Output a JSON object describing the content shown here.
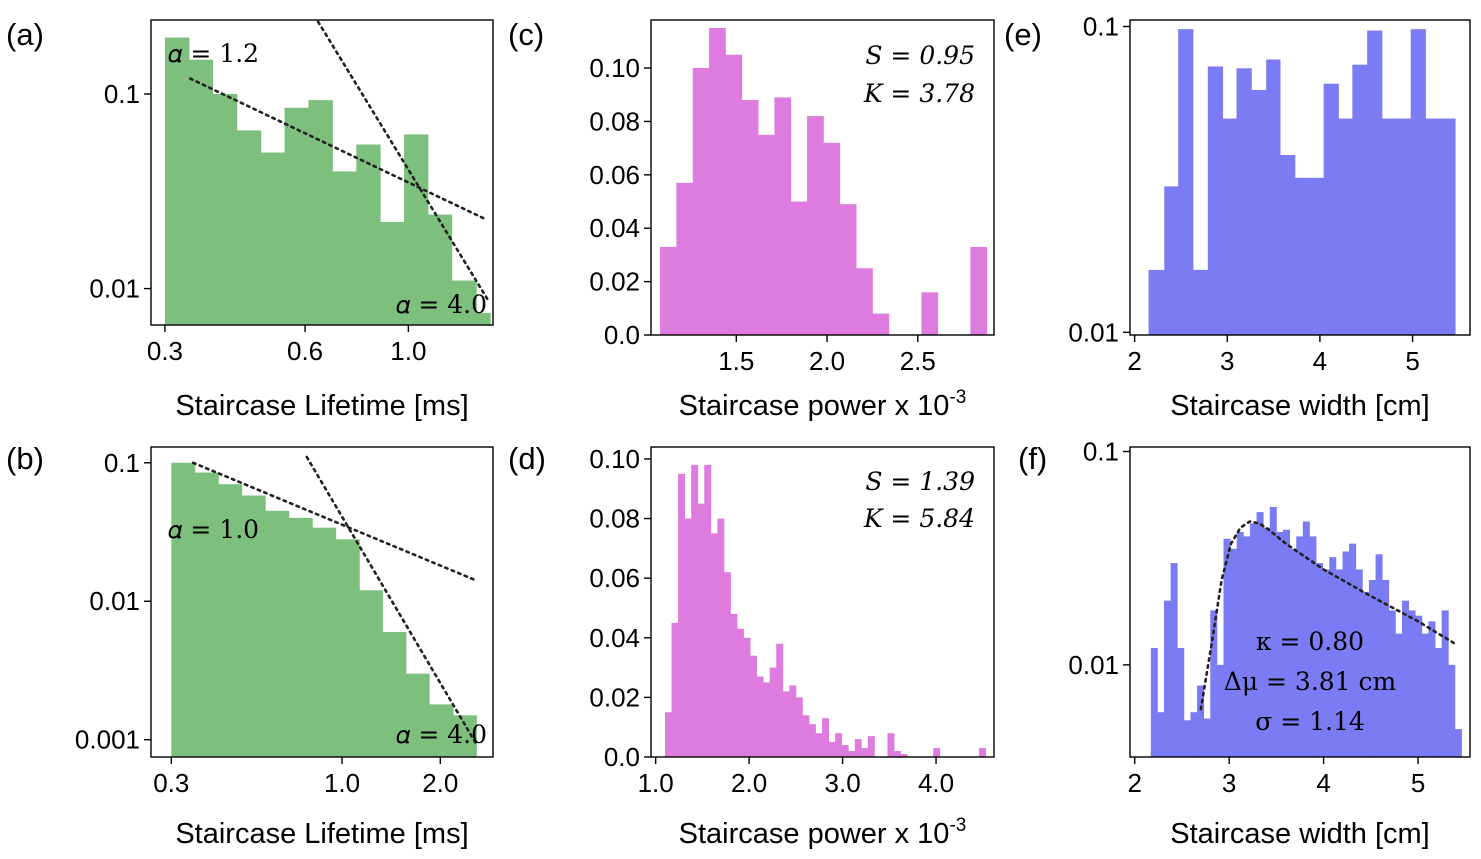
{
  "figure": {
    "panels": [
      "(a)",
      "(b)",
      "(c)",
      "(d)",
      "(e)",
      "(f)"
    ]
  },
  "chart_data": [
    {
      "id": "a",
      "panel_label": "(a)",
      "type": "bar",
      "yscale": "log",
      "xscale": "log",
      "title": "",
      "xlabel": "Staircase Lifetime [ms]",
      "ylabel": "",
      "color": "#7dbf7d",
      "xlim": [
        0.28,
        1.52
      ],
      "ylim": [
        0.0065,
        0.24
      ],
      "xticks": [
        0.3,
        0.6,
        1.0
      ],
      "xticklabels": [
        "0.3",
        "0.6",
        "1.0"
      ],
      "yticks": [
        0.01,
        0.1
      ],
      "yticklabels": [
        "0.01",
        "0.1"
      ],
      "bin_edges": [
        0.3,
        0.338,
        0.38,
        0.428,
        0.482,
        0.542,
        0.61,
        0.687,
        0.773,
        0.87,
        0.979,
        1.102,
        1.24,
        1.4,
        1.5
      ],
      "values": [
        0.195,
        0.15,
        0.1,
        0.065,
        0.05,
        0.085,
        0.093,
        0.04,
        0.055,
        0.022,
        0.062,
        0.024,
        0.011,
        0.0075
      ],
      "fits": [
        {
          "x": [
            0.34,
            1.45
          ],
          "y": [
            0.12,
            0.023
          ]
        },
        {
          "x": [
            0.64,
            1.48
          ],
          "y": [
            0.235,
            0.0088
          ]
        }
      ],
      "annotations": [
        {
          "text": "𝛼 = 1.2",
          "loc": "top-left"
        },
        {
          "text": "𝛼 = 4.0",
          "loc": "bottom-right"
        }
      ]
    },
    {
      "id": "b",
      "panel_label": "(b)",
      "type": "bar",
      "yscale": "log",
      "xscale": "log",
      "title": "",
      "xlabel": "Staircase Lifetime [ms]",
      "ylabel": "",
      "color": "#7dbf7d",
      "xlim": [
        0.26,
        2.9
      ],
      "ylim": [
        0.00075,
        0.13
      ],
      "xticks": [
        0.3,
        1.0,
        2.0
      ],
      "xticklabels": [
        "0.3",
        "1.0",
        "2.0"
      ],
      "yticks": [
        0.001,
        0.01,
        0.1
      ],
      "yticklabels": [
        "0.001",
        "0.01",
        "0.1"
      ],
      "bin_edges": [
        0.3,
        0.354,
        0.418,
        0.493,
        0.582,
        0.687,
        0.811,
        0.957,
        1.13,
        1.33,
        1.57,
        1.85,
        2.19,
        2.58
      ],
      "values": [
        0.1,
        0.085,
        0.07,
        0.058,
        0.045,
        0.04,
        0.034,
        0.028,
        0.012,
        0.006,
        0.003,
        0.0018,
        0.0015
      ],
      "fits": [
        {
          "x": [
            0.35,
            2.6
          ],
          "y": [
            0.1,
            0.014
          ]
        },
        {
          "x": [
            0.78,
            2.6
          ],
          "y": [
            0.11,
            0.0009
          ]
        }
      ],
      "annotations": [
        {
          "text": "𝛼 = 1.0",
          "loc": "middle-left"
        },
        {
          "text": "𝛼 = 4.0",
          "loc": "bottom-right"
        }
      ]
    },
    {
      "id": "c",
      "panel_label": "(c)",
      "type": "bar",
      "yscale": "linear",
      "title": "",
      "xlabel": "Staircase power x 10",
      "xlabel_sup": "-3",
      "ylabel": "",
      "color": "#dd7bde",
      "xlim": [
        1.03,
        2.92
      ],
      "ylim": [
        0.0,
        0.118
      ],
      "xticks": [
        1.5,
        2.0,
        2.5
      ],
      "xticklabels": [
        "1.5",
        "2.0",
        "2.5"
      ],
      "yticks": [
        0.0,
        0.02,
        0.04,
        0.06,
        0.08,
        0.1
      ],
      "yticklabels": [
        "0.0",
        "0.02",
        "0.04",
        "0.06",
        "0.08",
        "0.10"
      ],
      "bin_edges": [
        1.08,
        1.17,
        1.26,
        1.35,
        1.44,
        1.53,
        1.62,
        1.71,
        1.8,
        1.89,
        1.98,
        2.07,
        2.16,
        2.25,
        2.34,
        2.43,
        2.52,
        2.61,
        2.7,
        2.79,
        2.88
      ],
      "values": [
        0.033,
        0.057,
        0.1,
        0.115,
        0.105,
        0.088,
        0.075,
        0.089,
        0.05,
        0.082,
        0.072,
        0.049,
        0.025,
        0.008,
        0.0,
        0.0,
        0.016,
        0.0,
        0.0,
        0.033
      ],
      "annotations": [
        {
          "text": "S = 0.95",
          "loc": "top-right"
        },
        {
          "text": "K = 3.78",
          "loc": "top-right"
        }
      ]
    },
    {
      "id": "d",
      "panel_label": "(d)",
      "type": "bar",
      "yscale": "linear",
      "title": "",
      "xlabel": "Staircase power x 10",
      "xlabel_sup": "-3",
      "ylabel": "",
      "color": "#dd7bde",
      "xlim": [
        0.95,
        4.62
      ],
      "ylim": [
        0.0,
        0.104
      ],
      "xticks": [
        1.0,
        2.0,
        3.0,
        4.0
      ],
      "xticklabels": [
        "1.0",
        "2.0",
        "3.0",
        "4.0"
      ],
      "yticks": [
        0.0,
        0.02,
        0.04,
        0.06,
        0.08,
        0.1
      ],
      "yticklabels": [
        "0.0",
        "0.02",
        "0.04",
        "0.06",
        "0.08",
        "0.10"
      ],
      "bin_edges": [
        1.1,
        1.17,
        1.24,
        1.31,
        1.38,
        1.45,
        1.52,
        1.59,
        1.66,
        1.73,
        1.8,
        1.87,
        1.94,
        2.01,
        2.08,
        2.15,
        2.22,
        2.29,
        2.36,
        2.43,
        2.5,
        2.57,
        2.64,
        2.71,
        2.78,
        2.85,
        2.92,
        2.99,
        3.06,
        3.13,
        3.2,
        3.27,
        3.34,
        3.41,
        3.48,
        3.55,
        3.62,
        3.69,
        3.76,
        3.83,
        3.9,
        3.97,
        4.04,
        4.11,
        4.18,
        4.25,
        4.32,
        4.39,
        4.46,
        4.53
      ],
      "values": [
        0.015,
        0.045,
        0.095,
        0.08,
        0.098,
        0.085,
        0.098,
        0.075,
        0.08,
        0.062,
        0.048,
        0.043,
        0.04,
        0.034,
        0.027,
        0.025,
        0.03,
        0.038,
        0.022,
        0.024,
        0.02,
        0.014,
        0.011,
        0.008,
        0.013,
        0.005,
        0.008,
        0.004,
        0.002,
        0.006,
        0.003,
        0.007,
        0.0,
        0.0,
        0.008,
        0.002,
        0.001,
        0.0,
        0.0,
        0.0,
        0.0,
        0.003,
        0.0,
        0.0,
        0.0,
        0.0,
        0.0,
        0.0,
        0.003
      ],
      "annotations": [
        {
          "text": "S = 1.39",
          "loc": "top-right"
        },
        {
          "text": "K = 5.84",
          "loc": "top-right"
        }
      ]
    },
    {
      "id": "e",
      "panel_label": "(e)",
      "type": "bar",
      "yscale": "log",
      "title": "",
      "xlabel": "Staircase width [cm]",
      "ylabel": "",
      "color": "#7b7bf4",
      "xlim": [
        1.95,
        5.62
      ],
      "ylim": [
        0.0098,
        0.105
      ],
      "xticks": [
        2,
        3,
        4,
        5
      ],
      "xticklabels": [
        "2",
        "3",
        "4",
        "5"
      ],
      "yticks": [
        0.01,
        0.1
      ],
      "yticklabels": [
        "0.01",
        "0.1"
      ],
      "bin_edges": [
        2.15,
        2.32,
        2.47,
        2.63,
        2.79,
        2.95,
        3.1,
        3.26,
        3.42,
        3.57,
        3.73,
        3.88,
        4.04,
        4.2,
        4.35,
        4.51,
        4.67,
        4.83,
        4.98,
        5.14,
        5.3,
        5.46
      ],
      "values": [
        0.016,
        0.03,
        0.098,
        0.016,
        0.074,
        0.05,
        0.073,
        0.062,
        0.078,
        0.038,
        0.032,
        0.032,
        0.065,
        0.05,
        0.075,
        0.097,
        0.05,
        0.05,
        0.098,
        0.05,
        0.05
      ],
      "annotations": []
    },
    {
      "id": "f",
      "panel_label": "(f)",
      "type": "bar",
      "yscale": "log",
      "title": "",
      "xlabel": "Staircase width [cm]",
      "ylabel": "",
      "color": "#7b7bf4",
      "xlim": [
        1.95,
        5.55
      ],
      "ylim": [
        0.0037,
        0.105
      ],
      "xticks": [
        2,
        3,
        4,
        5
      ],
      "xticklabels": [
        "2",
        "3",
        "4",
        "5"
      ],
      "yticks": [
        0.01,
        0.1
      ],
      "yticklabels": [
        "0.01",
        "0.1"
      ],
      "bin_edges": [
        2.17,
        2.24,
        2.31,
        2.38,
        2.45,
        2.52,
        2.59,
        2.66,
        2.73,
        2.8,
        2.87,
        2.94,
        3.01,
        3.08,
        3.15,
        3.22,
        3.29,
        3.36,
        3.43,
        3.5,
        3.57,
        3.64,
        3.71,
        3.78,
        3.85,
        3.92,
        3.99,
        4.06,
        4.13,
        4.2,
        4.27,
        4.34,
        4.41,
        4.48,
        4.55,
        4.62,
        4.69,
        4.76,
        4.83,
        4.9,
        4.97,
        5.04,
        5.11,
        5.18,
        5.25,
        5.32,
        5.39,
        5.46
      ],
      "values": [
        0.012,
        0.006,
        0.02,
        0.03,
        0.012,
        0.0055,
        0.006,
        0.008,
        0.0056,
        0.018,
        0.01,
        0.039,
        0.035,
        0.042,
        0.04,
        0.046,
        0.052,
        0.044,
        0.055,
        0.042,
        0.043,
        0.035,
        0.04,
        0.047,
        0.04,
        0.03,
        0.028,
        0.032,
        0.028,
        0.034,
        0.037,
        0.028,
        0.022,
        0.025,
        0.033,
        0.025,
        0.018,
        0.014,
        0.02,
        0.018,
        0.017,
        0.014,
        0.016,
        0.012,
        0.018,
        0.01,
        0.005
      ],
      "fits": [
        {
          "x": [
            2.7,
            2.82,
            2.92,
            3.02,
            3.12,
            3.22,
            3.32,
            3.42,
            3.6,
            4.0,
            4.5,
            5.0,
            5.4
          ],
          "y": [
            0.0062,
            0.013,
            0.025,
            0.037,
            0.044,
            0.047,
            0.046,
            0.043,
            0.037,
            0.028,
            0.021,
            0.016,
            0.0125
          ]
        }
      ],
      "annotations": [
        {
          "text": "κ = 0.80",
          "loc": "bottom-center"
        },
        {
          "text": "Δμ = 3.81 cm",
          "loc": "bottom-center"
        },
        {
          "text": "σ = 1.14",
          "loc": "bottom-center"
        }
      ]
    }
  ]
}
